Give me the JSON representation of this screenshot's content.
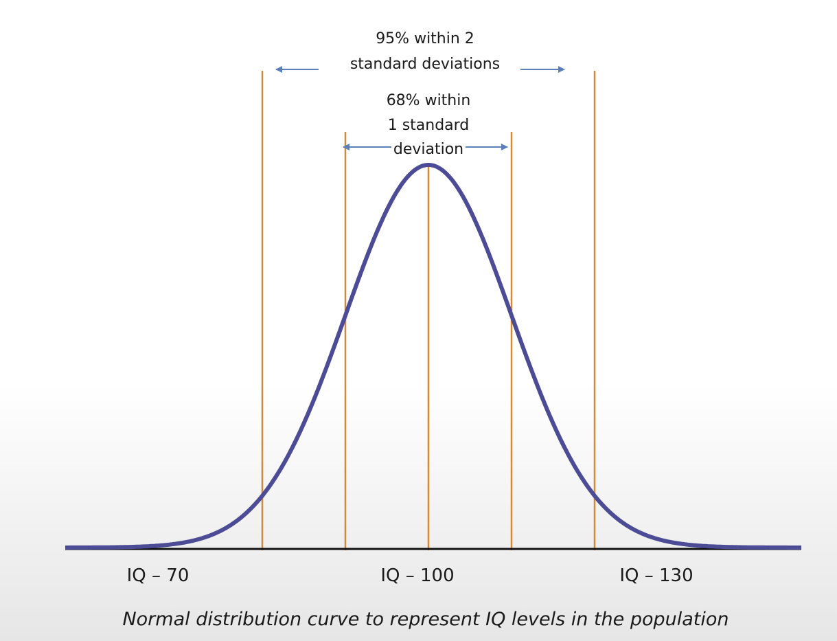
{
  "chart_data": {
    "type": "line",
    "title": "",
    "caption": "Normal distribution curve to represent IQ levels in the population",
    "xlabel": "",
    "ylabel": "",
    "distribution": {
      "mean": 100,
      "sd": 15
    },
    "xlim": [
      53,
      147
    ],
    "tick_labels": [
      {
        "x": 70,
        "label": "IQ – 70"
      },
      {
        "x": 100,
        "label": "IQ – 100"
      },
      {
        "x": 130,
        "label": "IQ – 130"
      }
    ],
    "reference_lines": [
      70,
      85,
      100,
      115,
      130
    ],
    "annotations": [
      {
        "text_lines": [
          "95% within 2",
          "standard deviations"
        ],
        "range": [
          70,
          130
        ]
      },
      {
        "text_lines": [
          "68% within",
          "1 standard",
          "deviation"
        ],
        "range": [
          85,
          115
        ]
      }
    ],
    "grid": false,
    "colors": {
      "curve": "#4b4b96",
      "reference_lines": "#d08a3a",
      "arrows": "#5b7fb8",
      "baseline": "#111111"
    }
  }
}
